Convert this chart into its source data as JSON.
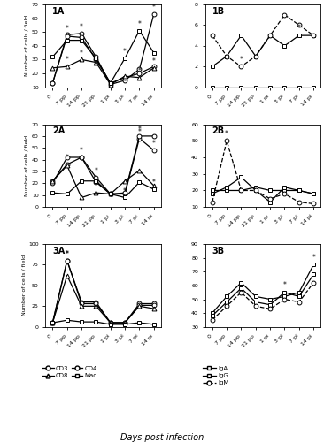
{
  "x_labels": [
    "0",
    "7 pp",
    "14 pp",
    "21 pp",
    "1 pi",
    "3 pi",
    "7 pi",
    "14 pi"
  ],
  "x_positions": [
    0,
    1,
    2,
    3,
    4,
    5,
    6,
    7
  ],
  "panel_1A": {
    "title": "1A",
    "ylim": [
      10,
      70
    ],
    "yticks": [
      10,
      20,
      30,
      40,
      50,
      60,
      70
    ],
    "CD3": [
      13,
      48,
      49,
      32,
      12,
      15,
      23,
      63
    ],
    "CD4": [
      13,
      47,
      46,
      30,
      13,
      17,
      20,
      25
    ],
    "CD8": [
      24,
      25,
      30,
      28,
      12,
      18,
      17,
      24
    ],
    "Mac": [
      32,
      44,
      44,
      31,
      13,
      31,
      51,
      35
    ],
    "stars_CD3": [
      false,
      true,
      true,
      false,
      false,
      false,
      false,
      true
    ],
    "stars_CD4": [
      false,
      false,
      false,
      false,
      false,
      false,
      false,
      false
    ],
    "stars_CD8": [
      false,
      true,
      true,
      false,
      false,
      false,
      true,
      true
    ],
    "stars_Mac": [
      false,
      false,
      false,
      false,
      false,
      true,
      true,
      false
    ]
  },
  "panel_1B": {
    "title": "1B",
    "ylim": [
      0,
      8
    ],
    "yticks": [
      0,
      2,
      4,
      6,
      8
    ],
    "IgA": [
      0,
      0,
      0,
      0,
      0,
      0,
      0,
      0
    ],
    "IgG": [
      2,
      3,
      5,
      3,
      5,
      4,
      5,
      5
    ],
    "IgM": [
      5,
      3,
      2,
      3,
      5,
      7,
      6,
      5
    ],
    "stars_IgA": [
      false,
      false,
      false,
      false,
      false,
      false,
      false,
      false
    ],
    "stars_IgG": [
      false,
      false,
      false,
      false,
      false,
      false,
      true,
      false
    ],
    "stars_IgM": [
      false,
      false,
      true,
      false,
      false,
      false,
      false,
      false
    ]
  },
  "panel_2A": {
    "title": "2A",
    "ylim": [
      0,
      70
    ],
    "yticks": [
      0,
      10,
      20,
      30,
      40,
      50,
      60,
      70
    ],
    "CD3": [
      22,
      36,
      42,
      25,
      11,
      11,
      58,
      48
    ],
    "CD4": [
      20,
      42,
      42,
      21,
      11,
      12,
      60,
      60
    ],
    "CD8": [
      22,
      35,
      8,
      12,
      11,
      22,
      31,
      18
    ],
    "Mac": [
      12,
      11,
      22,
      22,
      11,
      8,
      21,
      15
    ],
    "stars_CD3": [
      false,
      true,
      true,
      true,
      false,
      false,
      true,
      true
    ],
    "stars_CD4": [
      false,
      false,
      false,
      false,
      false,
      false,
      true,
      false
    ],
    "stars_CD8": [
      false,
      false,
      false,
      false,
      false,
      false,
      false,
      false
    ],
    "stars_Mac": [
      false,
      false,
      false,
      false,
      false,
      true,
      false,
      true
    ]
  },
  "panel_2B": {
    "title": "2B",
    "ylim": [
      10,
      60
    ],
    "yticks": [
      10,
      20,
      30,
      40,
      50,
      60
    ],
    "IgA": [
      20,
      20,
      20,
      22,
      20,
      20,
      20,
      18
    ],
    "IgG": [
      18,
      22,
      28,
      20,
      13,
      22,
      20,
      18
    ],
    "IgM": [
      13,
      50,
      20,
      20,
      15,
      18,
      13,
      12
    ],
    "stars_IgA": [
      false,
      false,
      false,
      false,
      false,
      false,
      false,
      false
    ],
    "stars_IgG": [
      false,
      false,
      false,
      false,
      false,
      false,
      false,
      false
    ],
    "stars_IgM": [
      false,
      true,
      false,
      false,
      false,
      false,
      false,
      false
    ]
  },
  "panel_3A": {
    "title": "3A",
    "ylim": [
      0,
      100
    ],
    "yticks": [
      0,
      25,
      50,
      75,
      100
    ],
    "CD3": [
      5,
      80,
      30,
      30,
      5,
      5,
      28,
      28
    ],
    "CD4": [
      5,
      80,
      28,
      28,
      5,
      5,
      26,
      26
    ],
    "CD8": [
      5,
      62,
      25,
      25,
      5,
      5,
      25,
      22
    ],
    "Mac": [
      5,
      8,
      6,
      6,
      3,
      3,
      5,
      3
    ],
    "stars_CD3": [
      false,
      true,
      false,
      false,
      false,
      false,
      false,
      false
    ],
    "stars_CD4": [
      false,
      true,
      false,
      false,
      false,
      false,
      false,
      false
    ],
    "stars_CD8": [
      false,
      false,
      false,
      false,
      false,
      false,
      false,
      false
    ],
    "stars_Mac": [
      false,
      false,
      false,
      false,
      false,
      false,
      false,
      false
    ]
  },
  "panel_3B": {
    "title": "3B",
    "ylim": [
      30,
      90
    ],
    "yticks": [
      30,
      40,
      50,
      60,
      70,
      80,
      90
    ],
    "IgA": [
      40,
      52,
      62,
      52,
      50,
      52,
      55,
      75
    ],
    "IgG": [
      38,
      48,
      58,
      48,
      46,
      55,
      52,
      68
    ],
    "IgM": [
      35,
      45,
      55,
      45,
      43,
      50,
      48,
      62
    ],
    "stars_IgA": [
      false,
      false,
      false,
      false,
      false,
      false,
      false,
      true
    ],
    "stars_IgG": [
      false,
      false,
      false,
      false,
      false,
      true,
      false,
      false
    ],
    "stars_IgM": [
      false,
      false,
      false,
      false,
      false,
      false,
      false,
      false
    ]
  },
  "ylabel": "Number of cells / field",
  "xlabel": "Days post infection"
}
